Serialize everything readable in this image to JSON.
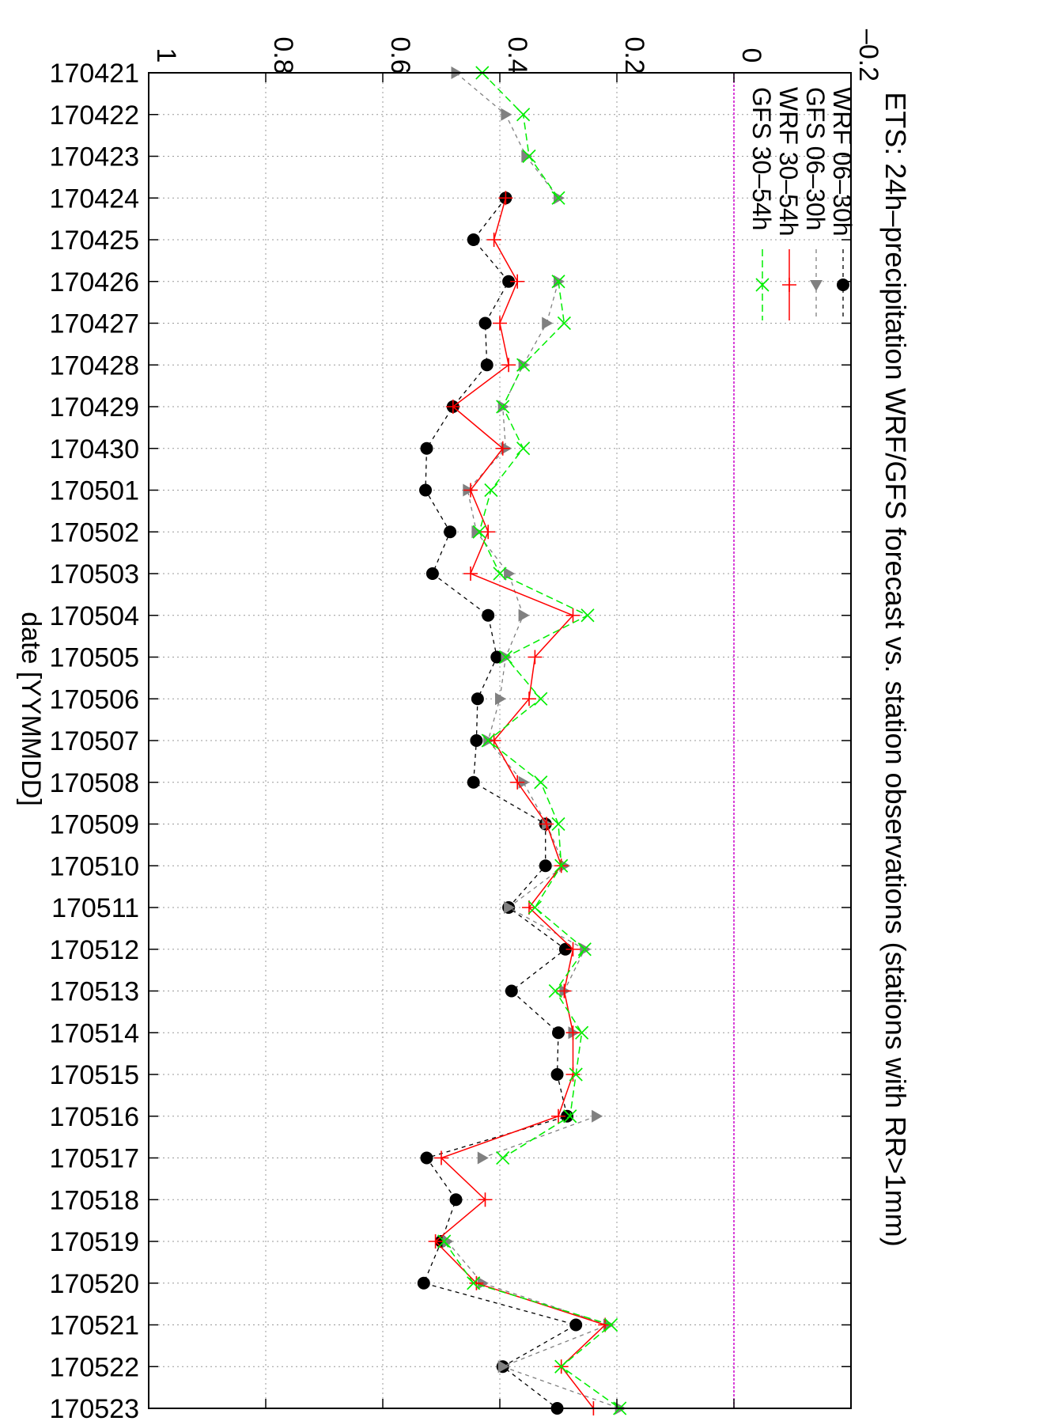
{
  "chart_data": {
    "type": "line",
    "title": "ETS:   24h–precipitation WRF/GFS forecast vs. station observations (stations with RR>1mm)",
    "xlabel": "date [YYMMDD]",
    "ylabel": "",
    "ylim": [
      -0.2,
      1.0
    ],
    "yticks": [
      "–0.2",
      "0",
      "0.2",
      "0.4",
      "0.6",
      "0.8",
      "1"
    ],
    "grid": true,
    "legend_position": "top-right",
    "orientation": "rotated-90-clockwise",
    "categories": [
      "170421",
      "170422",
      "170423",
      "170424",
      "170425",
      "170426",
      "170427",
      "170428",
      "170429",
      "170430",
      "170501",
      "170502",
      "170503",
      "170504",
      "170505",
      "170506",
      "170507",
      "170508",
      "170509",
      "170510",
      "170511",
      "170512",
      "170513",
      "170514",
      "170515",
      "170516",
      "170517",
      "170518",
      "170519",
      "170520",
      "170521",
      "170522",
      "170523"
    ],
    "series": [
      {
        "name": "WRF 06–30h",
        "color": "#000000",
        "marker": "circle",
        "values": [
          null,
          null,
          null,
          0.39,
          0.445,
          0.385,
          0.425,
          0.422,
          0.48,
          0.525,
          0.527,
          0.485,
          0.515,
          0.42,
          0.405,
          0.438,
          0.44,
          0.445,
          0.322,
          0.322,
          0.385,
          0.288,
          0.38,
          0.3,
          0.302,
          0.285,
          0.525,
          0.475,
          0.5,
          0.53,
          0.27,
          0.395,
          0.302
        ]
      },
      {
        "name": "GFS 06–30h",
        "color": "#808080",
        "marker": "triangle",
        "values": [
          0.475,
          0.39,
          0.355,
          0.3,
          null,
          0.3,
          0.32,
          0.36,
          0.395,
          0.39,
          0.455,
          0.44,
          0.385,
          0.36,
          0.39,
          0.4,
          0.42,
          0.36,
          0.32,
          0.29,
          0.385,
          0.255,
          0.29,
          0.275,
          null,
          0.235,
          0.43,
          null,
          0.49,
          0.43,
          0.215,
          0.395,
          0.195
        ]
      },
      {
        "name": "WRF 30–54h",
        "color": "#ff0000",
        "marker": "plus",
        "values": [
          null,
          null,
          null,
          0.39,
          0.41,
          0.37,
          0.4,
          0.385,
          0.48,
          0.395,
          0.45,
          0.42,
          0.45,
          0.275,
          0.34,
          0.35,
          0.41,
          0.37,
          0.32,
          0.295,
          0.35,
          0.275,
          0.29,
          0.275,
          0.275,
          0.3,
          0.5,
          0.425,
          0.51,
          0.44,
          0.22,
          0.295,
          0.24
        ]
      },
      {
        "name": "GFS 30–54h",
        "color": "#00ee00",
        "marker": "cross",
        "values": [
          0.43,
          0.36,
          0.35,
          0.3,
          null,
          0.3,
          0.29,
          0.36,
          0.395,
          0.36,
          0.415,
          0.435,
          0.4,
          0.25,
          0.39,
          0.33,
          0.42,
          0.33,
          0.3,
          0.295,
          0.34,
          0.255,
          0.305,
          0.26,
          0.27,
          0.28,
          0.395,
          null,
          0.495,
          0.445,
          0.21,
          0.295,
          0.195
        ]
      }
    ]
  }
}
